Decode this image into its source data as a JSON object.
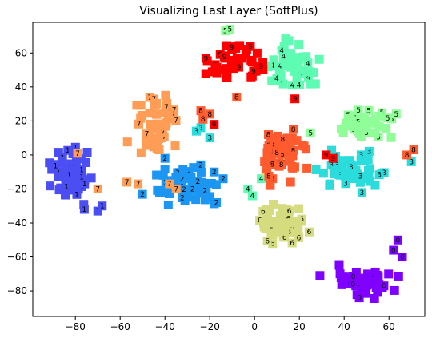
{
  "chart_data": {
    "type": "scatter",
    "title": "Visualizing Last Layer (SoftPlus)",
    "xlabel": "",
    "ylabel": "",
    "xlim": [
      -99,
      76
    ],
    "ylim": [
      -95,
      78
    ],
    "xticks": [
      -80,
      -60,
      -40,
      -20,
      0,
      20,
      40,
      60
    ],
    "yticks": [
      -80,
      -60,
      -40,
      -20,
      0,
      20,
      40,
      60
    ],
    "xtick_labels": [
      "−80",
      "−60",
      "−40",
      "−20",
      "0",
      "20",
      "40",
      "60"
    ],
    "ytick_labels": [
      "−80",
      "−60",
      "−40",
      "−20",
      "0",
      "20",
      "40",
      "60"
    ],
    "grid": false,
    "legend": "none",
    "marker": "filled square with digit label",
    "series": [
      {
        "label": "0",
        "color": "#7f00ff",
        "center": [
          48,
          -75
        ],
        "spread": [
          13,
          8
        ],
        "count": 48,
        "outliers": [
          [
            62,
            -56
          ],
          [
            64,
            -50
          ],
          [
            66,
            -60
          ]
        ]
      },
      {
        "label": "1",
        "color": "#4b4ef3",
        "center": [
          -82,
          -11
        ],
        "spread": [
          8,
          13
        ],
        "count": 55,
        "outliers": [
          [
            -70,
            -33
          ],
          [
            -68,
            -30
          ],
          [
            -76,
            -32
          ]
        ]
      },
      {
        "label": "2",
        "color": "#1b96f3",
        "center": [
          -30,
          -18
        ],
        "spread": [
          14,
          9
        ],
        "count": 60,
        "outliers": [
          [
            -17,
            -28
          ],
          [
            -18,
            -10
          ],
          [
            -14,
            -14
          ],
          [
            -40,
            -2
          ]
        ]
      },
      {
        "label": "3",
        "color": "#2adcdc",
        "center": [
          44,
          -10
        ],
        "spread": [
          12,
          9
        ],
        "count": 50,
        "outliers": [
          [
            -24,
            16
          ],
          [
            -26,
            14
          ],
          [
            -20,
            10
          ],
          [
            70,
            -4
          ]
        ]
      },
      {
        "label": "4",
        "color": "#5dfcb2",
        "center": [
          17,
          52
        ],
        "spread": [
          11,
          13
        ],
        "count": 50,
        "outliers": [
          [
            -3,
            -20
          ],
          [
            -1,
            -24
          ],
          [
            3,
            -14
          ]
        ]
      },
      {
        "label": "5",
        "color": "#90fe98",
        "center": [
          47,
          18
        ],
        "spread": [
          12,
          7
        ],
        "count": 45,
        "outliers": [
          [
            -13,
            73
          ],
          [
            -11,
            74
          ],
          [
            25,
            13
          ]
        ]
      },
      {
        "label": "6",
        "color": "#d4dc7f",
        "center": [
          12,
          -42
        ],
        "spread": [
          9,
          12
        ],
        "count": 55,
        "outliers": [
          [
            8,
            -5
          ],
          [
            13,
            -2
          ],
          [
            5,
            -10
          ]
        ]
      },
      {
        "label": "7",
        "color": "#ff9c56",
        "center": [
          -44,
          18
        ],
        "spread": [
          10,
          16
        ],
        "count": 50,
        "outliers": [
          [
            -38,
            -17
          ],
          [
            -35,
            -20
          ],
          [
            -57,
            -16
          ],
          [
            -52,
            -17
          ],
          [
            -70,
            -20
          ],
          [
            -79,
            1
          ]
        ]
      },
      {
        "label": "8",
        "color": "#ff5b2e",
        "center": [
          12,
          0
        ],
        "spread": [
          9,
          14
        ],
        "count": 55,
        "outliers": [
          [
            -20,
            24
          ],
          [
            -24,
            26
          ],
          [
            -23,
            21
          ],
          [
            71,
            3
          ],
          [
            68,
            0
          ],
          [
            -8,
            34
          ]
        ]
      },
      {
        "label": "9",
        "color": "#ff0000",
        "center": [
          -8,
          56
        ],
        "spread": [
          10,
          11
        ],
        "count": 45,
        "outliers": [
          [
            32,
            0
          ],
          [
            35,
            -2
          ],
          [
            -18,
            18
          ],
          [
            18,
            33
          ]
        ]
      }
    ]
  }
}
